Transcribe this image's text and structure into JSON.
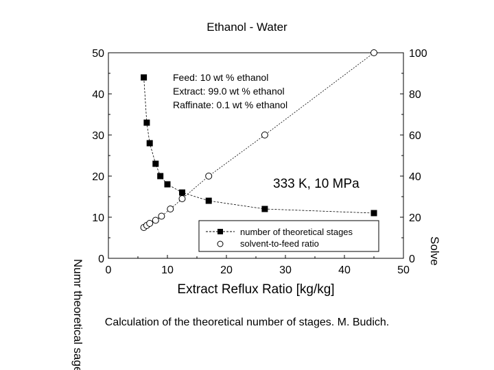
{
  "title": "Ethanol - Water",
  "caption": "Calculation of the theoretical number of stages. M. Budich.",
  "chart_data": {
    "type": "scatter",
    "xlabel": "Extract Reflux Ratio [kg/kg]",
    "xlim": [
      0,
      50
    ],
    "ylim": [
      0,
      50
    ],
    "y2lim": [
      0,
      100
    ],
    "xticks": [
      "0",
      "10",
      "20",
      "30",
      "40",
      "50"
    ],
    "yticks": [
      "0",
      "10",
      "20",
      "30",
      "40",
      "50"
    ],
    "y2ticks": [
      "0",
      "20",
      "40",
      "60",
      "80",
      "100"
    ],
    "y2label": "Solve",
    "annotations": {
      "conditions": [
        "Feed: 10 wt % ethanol",
        "Extract: 99.0 wt % ethanol",
        "Raffinate: 0.1 wt % ethanol"
      ],
      "state": "333 K, 10 MPa"
    },
    "legend": {
      "position": "bottom-right"
    },
    "series": [
      {
        "name": "number of theoretical stages",
        "axis": "left",
        "marker": "filled-square",
        "x": [
          6.0,
          6.5,
          7.0,
          8.0,
          8.8,
          10.0,
          12.5,
          17.0,
          26.5,
          45.0
        ],
        "y": [
          44,
          33,
          28,
          23,
          20,
          18,
          16,
          14,
          12,
          11
        ]
      },
      {
        "name": "solvent-to-feed ratio",
        "axis": "right",
        "marker": "open-circle",
        "x": [
          6.0,
          6.5,
          7.0,
          8.0,
          9.0,
          10.5,
          12.5,
          17.0,
          26.5,
          45.0
        ],
        "y": [
          15,
          16,
          17,
          18.5,
          20.5,
          24,
          29,
          40,
          60,
          100
        ]
      }
    ],
    "garbled_ylabel": "Numr theoretical sages"
  }
}
